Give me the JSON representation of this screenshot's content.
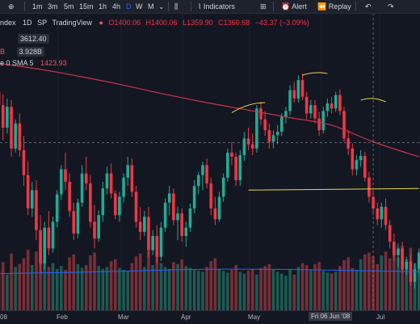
{
  "toolbar": {
    "intervals": [
      "1m",
      "3m",
      "5m",
      "15m",
      "1h",
      "4h",
      "D",
      "W",
      "M"
    ],
    "active_interval": "D",
    "indicators_label": "Indicators",
    "alert_label": "Alert",
    "replay_label": "Replay",
    "icons": [
      "plus-icon",
      "caret-down-icon",
      "candles-icon",
      "indicators-icon",
      "layout-icon",
      "alert-icon",
      "replay-icon",
      "undo-icon",
      "redo-icon"
    ]
  },
  "legend": {
    "symbol": "ndex",
    "interval": "1D",
    "exchange": "SP",
    "source": "TradingView",
    "O": "O1400.06",
    "H": "H1400.06",
    "L": "L1359.90",
    "C": "C1360.68",
    "change": "−43.37 (−3.09%)",
    "pill_value": "3612.40",
    "volume_prefix": "B",
    "volume_value": "3.928B",
    "sma_label": "e 0 SMA 5",
    "sma_value": "1423.93"
  },
  "xaxis": {
    "labels": [
      "08",
      "Feb",
      "Mar",
      "Apr",
      "May",
      "Jun",
      "Jul"
    ],
    "crosshair_label": "Fri 06 Jun '08"
  },
  "colors": {
    "background": "#131722",
    "up": "#22ab94",
    "down": "#f23645",
    "vol_up": "#1d5a52",
    "vol_down": "#7a2e36",
    "ma_long": "#c93549",
    "ma_volume": "#2962ff",
    "annotation": "#e8d44d",
    "accent": "#2962ff"
  },
  "chart_data": {
    "type": "candlestick",
    "y_range": [
      1150,
      1470
    ],
    "volume_range": [
      0,
      8
    ],
    "candles": [
      {
        "o": 1418,
        "h": 1432,
        "l": 1395,
        "c": 1402
      },
      {
        "o": 1402,
        "h": 1415,
        "l": 1360,
        "c": 1375
      },
      {
        "o": 1375,
        "h": 1410,
        "l": 1368,
        "c": 1400
      },
      {
        "o": 1400,
        "h": 1408,
        "l": 1340,
        "c": 1350
      },
      {
        "o": 1350,
        "h": 1385,
        "l": 1345,
        "c": 1380
      },
      {
        "o": 1380,
        "h": 1392,
        "l": 1340,
        "c": 1348
      },
      {
        "o": 1348,
        "h": 1365,
        "l": 1305,
        "c": 1318
      },
      {
        "o": 1318,
        "h": 1335,
        "l": 1270,
        "c": 1278
      },
      {
        "o": 1278,
        "h": 1310,
        "l": 1268,
        "c": 1300
      },
      {
        "o": 1300,
        "h": 1312,
        "l": 1240,
        "c": 1252
      },
      {
        "o": 1252,
        "h": 1270,
        "l": 1200,
        "c": 1212
      },
      {
        "o": 1212,
        "h": 1262,
        "l": 1205,
        "c": 1255
      },
      {
        "o": 1255,
        "h": 1275,
        "l": 1222,
        "c": 1230
      },
      {
        "o": 1230,
        "h": 1268,
        "l": 1225,
        "c": 1262
      },
      {
        "o": 1262,
        "h": 1300,
        "l": 1255,
        "c": 1295
      },
      {
        "o": 1295,
        "h": 1330,
        "l": 1288,
        "c": 1325
      },
      {
        "o": 1325,
        "h": 1345,
        "l": 1300,
        "c": 1310
      },
      {
        "o": 1310,
        "h": 1320,
        "l": 1268,
        "c": 1275
      },
      {
        "o": 1275,
        "h": 1285,
        "l": 1240,
        "c": 1248
      },
      {
        "o": 1248,
        "h": 1290,
        "l": 1242,
        "c": 1285
      },
      {
        "o": 1285,
        "h": 1330,
        "l": 1280,
        "c": 1320
      },
      {
        "o": 1320,
        "h": 1340,
        "l": 1300,
        "c": 1308
      },
      {
        "o": 1308,
        "h": 1318,
        "l": 1255,
        "c": 1262
      },
      {
        "o": 1262,
        "h": 1282,
        "l": 1230,
        "c": 1242
      },
      {
        "o": 1242,
        "h": 1276,
        "l": 1238,
        "c": 1270
      },
      {
        "o": 1270,
        "h": 1310,
        "l": 1262,
        "c": 1302
      },
      {
        "o": 1302,
        "h": 1328,
        "l": 1295,
        "c": 1320
      },
      {
        "o": 1320,
        "h": 1332,
        "l": 1290,
        "c": 1296
      },
      {
        "o": 1296,
        "h": 1300,
        "l": 1265,
        "c": 1270
      },
      {
        "o": 1270,
        "h": 1298,
        "l": 1262,
        "c": 1292
      },
      {
        "o": 1292,
        "h": 1320,
        "l": 1285,
        "c": 1315
      },
      {
        "o": 1315,
        "h": 1340,
        "l": 1305,
        "c": 1330
      },
      {
        "o": 1330,
        "h": 1338,
        "l": 1292,
        "c": 1298
      },
      {
        "o": 1298,
        "h": 1305,
        "l": 1255,
        "c": 1262
      },
      {
        "o": 1262,
        "h": 1280,
        "l": 1240,
        "c": 1250
      },
      {
        "o": 1250,
        "h": 1275,
        "l": 1245,
        "c": 1268
      },
      {
        "o": 1268,
        "h": 1280,
        "l": 1220,
        "c": 1228
      },
      {
        "o": 1228,
        "h": 1252,
        "l": 1222,
        "c": 1245
      },
      {
        "o": 1245,
        "h": 1258,
        "l": 1212,
        "c": 1220
      },
      {
        "o": 1220,
        "h": 1262,
        "l": 1215,
        "c": 1255
      },
      {
        "o": 1255,
        "h": 1290,
        "l": 1250,
        "c": 1285
      },
      {
        "o": 1285,
        "h": 1305,
        "l": 1270,
        "c": 1296
      },
      {
        "o": 1296,
        "h": 1302,
        "l": 1258,
        "c": 1264
      },
      {
        "o": 1264,
        "h": 1280,
        "l": 1240,
        "c": 1272
      },
      {
        "o": 1272,
        "h": 1278,
        "l": 1238,
        "c": 1245
      },
      {
        "o": 1245,
        "h": 1262,
        "l": 1232,
        "c": 1255
      },
      {
        "o": 1255,
        "h": 1284,
        "l": 1250,
        "c": 1278
      },
      {
        "o": 1278,
        "h": 1312,
        "l": 1272,
        "c": 1305
      },
      {
        "o": 1305,
        "h": 1322,
        "l": 1295,
        "c": 1318
      },
      {
        "o": 1318,
        "h": 1334,
        "l": 1300,
        "c": 1330
      },
      {
        "o": 1330,
        "h": 1338,
        "l": 1302,
        "c": 1308
      },
      {
        "o": 1308,
        "h": 1315,
        "l": 1270,
        "c": 1278
      },
      {
        "o": 1278,
        "h": 1292,
        "l": 1258,
        "c": 1265
      },
      {
        "o": 1265,
        "h": 1298,
        "l": 1262,
        "c": 1292
      },
      {
        "o": 1292,
        "h": 1320,
        "l": 1286,
        "c": 1315
      },
      {
        "o": 1315,
        "h": 1350,
        "l": 1310,
        "c": 1345
      },
      {
        "o": 1345,
        "h": 1358,
        "l": 1330,
        "c": 1340
      },
      {
        "o": 1340,
        "h": 1345,
        "l": 1305,
        "c": 1312
      },
      {
        "o": 1312,
        "h": 1348,
        "l": 1305,
        "c": 1342
      },
      {
        "o": 1342,
        "h": 1370,
        "l": 1335,
        "c": 1362
      },
      {
        "o": 1362,
        "h": 1375,
        "l": 1348,
        "c": 1355
      },
      {
        "o": 1355,
        "h": 1368,
        "l": 1342,
        "c": 1350
      },
      {
        "o": 1350,
        "h": 1402,
        "l": 1345,
        "c": 1398
      },
      {
        "o": 1398,
        "h": 1406,
        "l": 1378,
        "c": 1385
      },
      {
        "o": 1385,
        "h": 1395,
        "l": 1365,
        "c": 1372
      },
      {
        "o": 1372,
        "h": 1380,
        "l": 1350,
        "c": 1358
      },
      {
        "o": 1358,
        "h": 1372,
        "l": 1350,
        "c": 1366
      },
      {
        "o": 1366,
        "h": 1378,
        "l": 1355,
        "c": 1370
      },
      {
        "o": 1370,
        "h": 1392,
        "l": 1365,
        "c": 1388
      },
      {
        "o": 1388,
        "h": 1400,
        "l": 1380,
        "c": 1395
      },
      {
        "o": 1395,
        "h": 1426,
        "l": 1390,
        "c": 1420
      },
      {
        "o": 1420,
        "h": 1430,
        "l": 1405,
        "c": 1410
      },
      {
        "o": 1410,
        "h": 1438,
        "l": 1405,
        "c": 1432
      },
      {
        "o": 1432,
        "h": 1440,
        "l": 1408,
        "c": 1412
      },
      {
        "o": 1412,
        "h": 1418,
        "l": 1385,
        "c": 1392
      },
      {
        "o": 1392,
        "h": 1408,
        "l": 1386,
        "c": 1402
      },
      {
        "o": 1402,
        "h": 1408,
        "l": 1380,
        "c": 1386
      },
      {
        "o": 1386,
        "h": 1394,
        "l": 1365,
        "c": 1372
      },
      {
        "o": 1372,
        "h": 1400,
        "l": 1368,
        "c": 1395
      },
      {
        "o": 1395,
        "h": 1410,
        "l": 1388,
        "c": 1404
      },
      {
        "o": 1404,
        "h": 1412,
        "l": 1392,
        "c": 1398
      },
      {
        "o": 1398,
        "h": 1418,
        "l": 1394,
        "c": 1414
      },
      {
        "o": 1414,
        "h": 1421,
        "l": 1390,
        "c": 1395
      },
      {
        "o": 1395,
        "h": 1400,
        "l": 1358,
        "c": 1362
      },
      {
        "o": 1362,
        "h": 1372,
        "l": 1342,
        "c": 1350
      },
      {
        "o": 1350,
        "h": 1356,
        "l": 1318,
        "c": 1325
      },
      {
        "o": 1325,
        "h": 1342,
        "l": 1318,
        "c": 1336
      },
      {
        "o": 1336,
        "h": 1348,
        "l": 1328,
        "c": 1341
      },
      {
        "o": 1341,
        "h": 1346,
        "l": 1310,
        "c": 1315
      },
      {
        "o": 1315,
        "h": 1322,
        "l": 1285,
        "c": 1292
      },
      {
        "o": 1292,
        "h": 1300,
        "l": 1270,
        "c": 1278
      },
      {
        "o": 1278,
        "h": 1285,
        "l": 1258,
        "c": 1265
      },
      {
        "o": 1265,
        "h": 1285,
        "l": 1255,
        "c": 1280
      },
      {
        "o": 1280,
        "h": 1290,
        "l": 1252,
        "c": 1258
      },
      {
        "o": 1258,
        "h": 1264,
        "l": 1230,
        "c": 1238
      },
      {
        "o": 1238,
        "h": 1248,
        "l": 1215,
        "c": 1222
      },
      {
        "o": 1222,
        "h": 1236,
        "l": 1208,
        "c": 1230
      },
      {
        "o": 1230,
        "h": 1238,
        "l": 1200,
        "c": 1205
      },
      {
        "o": 1205,
        "h": 1220,
        "l": 1198,
        "c": 1214
      },
      {
        "o": 1214,
        "h": 1222,
        "l": 1185,
        "c": 1190
      },
      {
        "o": 1190,
        "h": 1212,
        "l": 1182,
        "c": 1205
      },
      {
        "o": 1205,
        "h": 1230,
        "l": 1200,
        "c": 1225
      }
    ],
    "volume": [
      4.2,
      5.1,
      3.8,
      6.0,
      4.6,
      4.9,
      5.5,
      6.4,
      4.8,
      6.2,
      7.0,
      5.3,
      4.6,
      5.0,
      4.4,
      4.7,
      4.3,
      5.6,
      5.9,
      4.9,
      4.5,
      4.8,
      5.8,
      6.1,
      4.7,
      4.4,
      4.6,
      5.2,
      5.4,
      4.5,
      4.3,
      4.2,
      5.0,
      5.7,
      6.0,
      4.6,
      6.3,
      4.8,
      5.9,
      5.0,
      4.6,
      4.4,
      5.1,
      4.9,
      5.4,
      4.7,
      4.5,
      4.3,
      4.2,
      4.1,
      4.6,
      5.2,
      5.5,
      4.4,
      4.2,
      4.0,
      4.3,
      4.8,
      4.1,
      3.9,
      4.2,
      4.4,
      3.8,
      4.5,
      4.7,
      4.9,
      4.3,
      4.1,
      3.9,
      3.7,
      4.4,
      3.8,
      4.6,
      5.0,
      4.8,
      4.3,
      4.9,
      5.1,
      4.2,
      4.0,
      3.9,
      4.1,
      4.7,
      5.3,
      5.6,
      4.5,
      4.3,
      5.4,
      5.9,
      6.1,
      5.7,
      4.9,
      5.8,
      6.2,
      5.5,
      6.4,
      5.6,
      6.8,
      5.4,
      6.6,
      5.0,
      5.2
    ],
    "ma_long": [
      [
        0,
        1452
      ],
      [
        10,
        1445
      ],
      [
        20,
        1436
      ],
      [
        30,
        1426
      ],
      [
        40,
        1415
      ],
      [
        50,
        1405
      ],
      [
        60,
        1396
      ],
      [
        70,
        1387
      ],
      [
        80,
        1378
      ],
      [
        90,
        1358
      ],
      [
        101,
        1340
      ]
    ],
    "ma_volume": [
      [
        0,
        3.9
      ],
      [
        25,
        4.1
      ],
      [
        50,
        4.35
      ],
      [
        75,
        4.3
      ],
      [
        101,
        4.1
      ]
    ],
    "annotations": {
      "neckline": [
        [
          60,
          1300
        ],
        [
          101,
          1302
        ]
      ],
      "arcs": [
        {
          "from": [
            56,
            1393
          ],
          "mid": [
            60,
            1402
          ],
          "to": [
            64,
            1405
          ]
        },
        {
          "from": [
            73,
            1438
          ],
          "mid": [
            76,
            1440
          ],
          "to": [
            79,
            1440
          ]
        },
        {
          "from": [
            87,
            1408
          ],
          "mid": [
            90,
            1410
          ],
          "to": [
            93,
            1406
          ]
        }
      ],
      "dashed_level": 1357,
      "crosshair_candle": 90
    }
  }
}
